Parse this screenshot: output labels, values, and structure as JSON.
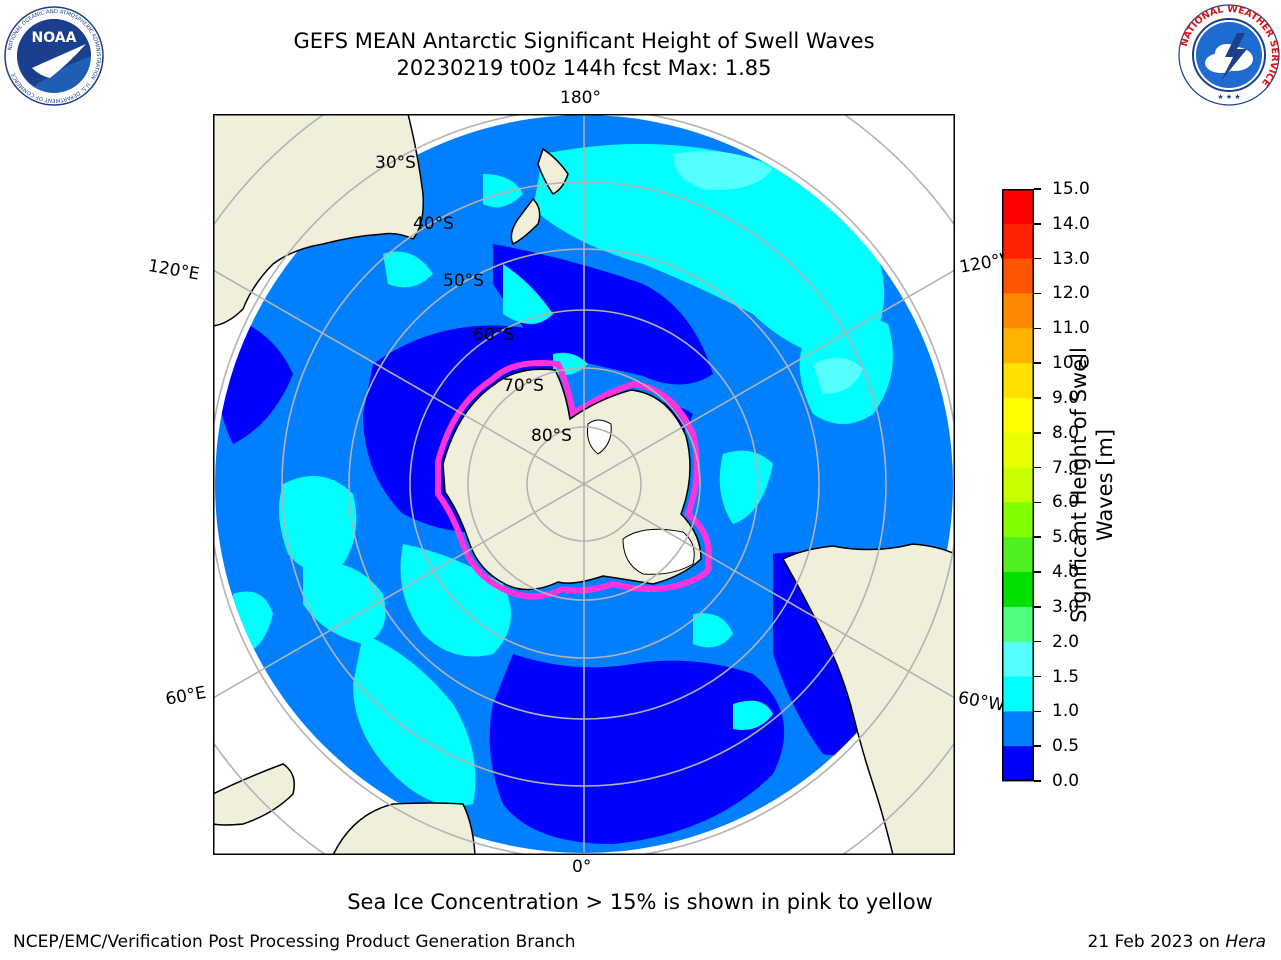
{
  "header": {
    "title_line1": "GEFS MEAN Antarctic Significant Height of Swell Waves",
    "title_line2": "20230219 t00z 144h fcst   Max: 1.85"
  },
  "logos": {
    "left": {
      "text": "NOAA",
      "ring_text": "NATIONAL OCEANIC AND ATMOSPHERIC ADMINISTRATION · U.S. DEPARTMENT OF COMMERCE"
    },
    "right": {
      "ring_text": "NATIONAL WEATHER SERVICE"
    }
  },
  "map": {
    "longitude_labels": {
      "top": "180°",
      "bottom": "0°",
      "left_upper": "120°E",
      "left_lower": "60°E",
      "right_upper": "120°W",
      "right_lower": "60°W"
    },
    "latitude_labels": [
      "30°S",
      "40°S",
      "50°S",
      "60°S",
      "70°S",
      "80°S"
    ],
    "colors": {
      "land": "#efefdc",
      "ice_shelf": "#ffffff",
      "grid": "#b3b3b3",
      "coast": "#000000"
    }
  },
  "colorbar": {
    "label_line1": "Significant Height of Swell",
    "label_line2": "Waves [m]",
    "ticks": [
      "15.0",
      "14.0",
      "13.0",
      "12.0",
      "11.0",
      "10.0",
      "9.0",
      "8.0",
      "7.0",
      "6.0",
      "5.0",
      "4.0",
      "3.0",
      "2.0",
      "1.5",
      "1.0",
      "0.5",
      "0.0"
    ],
    "bands_top_to_bottom": [
      "#ff0000",
      "#ff2200",
      "#ff5500",
      "#ff8800",
      "#ffb300",
      "#ffe000",
      "#ffff00",
      "#e8ff00",
      "#c8ff00",
      "#7fff00",
      "#50f020",
      "#00e000",
      "#50ff80",
      "#aaffff",
      "#55ffff",
      "#00ffff",
      "#0080ff",
      "#0000ff"
    ]
  },
  "ice_note": "Sea Ice Concentration > 15% is shown in pink to yellow",
  "footer": {
    "left": "NCEP/EMC/Verification Post Processing Product Generation Branch",
    "right_prefix": "21 Feb 2023 on ",
    "right_host": "Hera"
  }
}
